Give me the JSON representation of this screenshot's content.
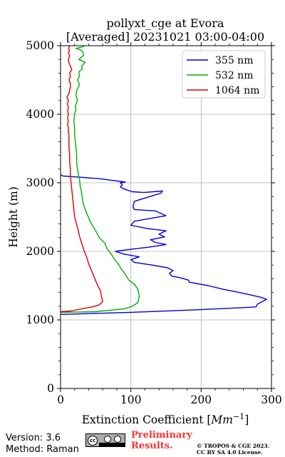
{
  "chart_data": {
    "type": "line",
    "title": "pollyxt_cge at Evora",
    "subtitle": "[Averaged] 20231021 03:00-04:00",
    "xlabel": "Extinction Coefficient [",
    "xlabel_unit": "Mm",
    "xlabel_exp": "−1",
    "xlabel_close": "]",
    "ylabel": "Height (m)",
    "xlim": [
      0,
      300
    ],
    "ylim": [
      0,
      5000
    ],
    "xticks": [
      "0",
      "100",
      "200",
      "300"
    ],
    "yticks": [
      "0",
      "1000",
      "2000",
      "3000",
      "4000",
      "5000"
    ],
    "grid": true,
    "legend_position": "top-right",
    "series": [
      {
        "name": "355 nm",
        "color": "#0000dd",
        "x": [
          0,
          100,
          200,
          262,
          278,
          280,
          293,
          285,
          272,
          254,
          230,
          210,
          183,
          182,
          172,
          158,
          155,
          160,
          152,
          130,
          105,
          100,
          112,
          90,
          78,
          100,
          125,
          150,
          135,
          128,
          148,
          140,
          150,
          125,
          100,
          105,
          150,
          135,
          105,
          103,
          105,
          143,
          145,
          120,
          117,
          102,
          90,
          85,
          88,
          85,
          92,
          55,
          3,
          0
        ],
        "y": [
          1080,
          1110,
          1150,
          1180,
          1190,
          1230,
          1300,
          1330,
          1360,
          1400,
          1450,
          1500,
          1550,
          1580,
          1610,
          1640,
          1680,
          1720,
          1760,
          1800,
          1840,
          1880,
          1920,
          1960,
          2000,
          2030,
          2060,
          2100,
          2130,
          2170,
          2210,
          2250,
          2300,
          2330,
          2380,
          2440,
          2520,
          2590,
          2610,
          2650,
          2730,
          2850,
          2880,
          2860,
          2860,
          2870,
          2910,
          2940,
          2970,
          3000,
          3010,
          3060,
          3100,
          3120
        ]
      },
      {
        "name": "532 nm",
        "color": "#00b000",
        "x": [
          0,
          50,
          90,
          100,
          110,
          112,
          110,
          105,
          97,
          93,
          88,
          83,
          77,
          72,
          66,
          63,
          55,
          50,
          43,
          37,
          32,
          30,
          28,
          27,
          25,
          23,
          23,
          22,
          21,
          20,
          20,
          19,
          20,
          22,
          21,
          24,
          22,
          23,
          27,
          24,
          27,
          26,
          31,
          30,
          35,
          26,
          33,
          32,
          29,
          22,
          33,
          32
        ],
        "y": [
          1110,
          1120,
          1160,
          1190,
          1250,
          1350,
          1450,
          1520,
          1580,
          1650,
          1720,
          1800,
          1880,
          1960,
          2040,
          2120,
          2200,
          2300,
          2420,
          2560,
          2700,
          2850,
          2950,
          3050,
          3150,
          3280,
          3400,
          3500,
          3600,
          3700,
          3800,
          3900,
          4000,
          4080,
          4120,
          4200,
          4280,
          4350,
          4430,
          4500,
          4560,
          4620,
          4660,
          4700,
          4760,
          4800,
          4860,
          4900,
          4940,
          4960,
          4990,
          5000
        ]
      },
      {
        "name": "1064 nm",
        "color": "#dd0000",
        "x": [
          0,
          15,
          30,
          45,
          55,
          60,
          58,
          57,
          52,
          48,
          44,
          40,
          37,
          33,
          30,
          27,
          24,
          20,
          18,
          16,
          15,
          14,
          14,
          13,
          13,
          12,
          12,
          12,
          12,
          11,
          11,
          10,
          11,
          10,
          11,
          10,
          11,
          10,
          11,
          9,
          12,
          13,
          14,
          14,
          12,
          14,
          13,
          16,
          14,
          12,
          11,
          13,
          12,
          11,
          13,
          11,
          13
        ],
        "y": [
          1120,
          1130,
          1160,
          1190,
          1220,
          1270,
          1350,
          1420,
          1520,
          1620,
          1720,
          1820,
          1920,
          2020,
          2120,
          2220,
          2350,
          2500,
          2700,
          2900,
          3000,
          3100,
          3200,
          3300,
          3400,
          3500,
          3600,
          3650,
          3700,
          3750,
          3800,
          3850,
          3900,
          3950,
          4000,
          4050,
          4100,
          4150,
          4200,
          4250,
          4300,
          4350,
          4400,
          4450,
          4500,
          4550,
          4600,
          4650,
          4700,
          4750,
          4800,
          4850,
          4880,
          4900,
          4930,
          4960,
          5000
        ]
      }
    ]
  },
  "footer": {
    "version": "Version: 3.6",
    "method": "Method: Raman",
    "preliminary_line1": "Preliminary",
    "preliminary_line2": "Results.",
    "copyright_line1": "© TROPOS & CGE 2023.",
    "copyright_line2": "CC BY SA 4.0 License.",
    "license_badge_icon": "creative-commons-by-sa-icon",
    "license_badge_text": "cc"
  }
}
